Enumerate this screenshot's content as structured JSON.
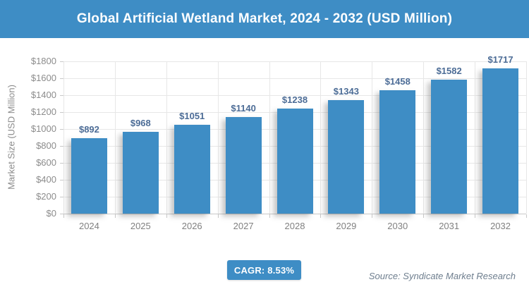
{
  "header": {
    "title": "Global Artificial Wetland Market, 2024 - 2032 (USD Million)"
  },
  "footer": {
    "cagr_label": "CAGR: 8.53%",
    "source": "Source: Syndicate Market Research"
  },
  "colors": {
    "accent": "#3e8dc5",
    "bar": "#3e8dc5",
    "data_label": "#4c6c96",
    "grid": "#e7e7e7",
    "axis": "#c9c9c9",
    "tick_text": "#8c8c8c",
    "source_text": "#6e7e8e",
    "title_text": "#ffffff"
  },
  "chart_data": {
    "type": "bar",
    "title": "Global Artificial Wetland Market, 2024 - 2032 (USD Million)",
    "categories": [
      "2024",
      "2025",
      "2026",
      "2027",
      "2028",
      "2029",
      "2030",
      "2031",
      "2032"
    ],
    "values": [
      892,
      968,
      1051,
      1140,
      1238,
      1343,
      1458,
      1582,
      1717
    ],
    "value_labels": [
      "$892",
      "$968",
      "$1051",
      "$1140",
      "$1238",
      "$1343",
      "$1458",
      "$1582",
      "$1717"
    ],
    "xlabel": "",
    "ylabel": "Market Size (USD Million)",
    "ylim": [
      0,
      1800
    ],
    "yticks": [
      {
        "value": 0,
        "label": "$0"
      },
      {
        "value": 200,
        "label": "$200"
      },
      {
        "value": 400,
        "label": "$400"
      },
      {
        "value": 600,
        "label": "$600"
      },
      {
        "value": 800,
        "label": "$800"
      },
      {
        "value": 1000,
        "label": "$1000"
      },
      {
        "value": 1200,
        "label": "$1200"
      },
      {
        "value": 1400,
        "label": "$1400"
      },
      {
        "value": 1600,
        "label": "$1600"
      },
      {
        "value": 1800,
        "label": "$1800"
      }
    ],
    "grid": true,
    "legend": false,
    "cagr": "8.53%"
  }
}
